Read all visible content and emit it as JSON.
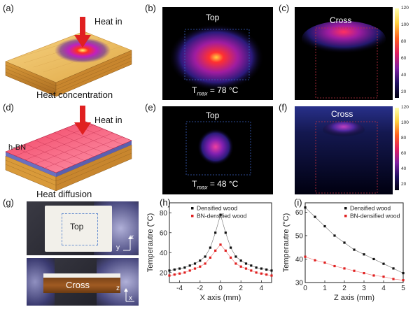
{
  "panels": {
    "a": {
      "label": "(a)",
      "heat_in": "Heat in",
      "caption": "Heat concentration"
    },
    "b": {
      "label": "(b)",
      "view": "Top",
      "tmax_prefix": "T",
      "tmax_sub": "max",
      "tmax_value": "= 78 °C"
    },
    "c": {
      "label": "(c)",
      "view": "Cross"
    },
    "d": {
      "label": "(d)",
      "heat_in": "Heat in",
      "material": "h-BN",
      "caption": "Heat diffusion"
    },
    "e": {
      "label": "(e)",
      "view": "Top",
      "tmax_prefix": "T",
      "tmax_sub": "max",
      "tmax_value": "= 48 °C"
    },
    "f": {
      "label": "(f)",
      "view": "Cross"
    },
    "g": {
      "label": "(g)",
      "top_label": "Top",
      "cross_label": "Cross",
      "axis_x": "x",
      "axis_y": "y",
      "axis_z": "z",
      "axis_x2": "x"
    },
    "h": {
      "label": "(h)"
    },
    "i": {
      "label": "(i)"
    }
  },
  "colorbar": {
    "ticks": [
      "120",
      "100",
      "80",
      "60",
      "40",
      "20"
    ]
  },
  "colors": {
    "densified": "#111111",
    "bn": "#e02020",
    "thermal_bg": "#000000"
  },
  "chart_data": [
    {
      "type": "line",
      "panel": "h",
      "xlabel": "X axis (mm)",
      "ylabel": "Temperautre (°C)",
      "xlim": [
        -5,
        5
      ],
      "ylim": [
        10,
        90
      ],
      "xticks": [
        -4,
        -2,
        0,
        2,
        4
      ],
      "yticks": [
        20,
        40,
        60,
        80
      ],
      "legend_position": "top-center",
      "x": [
        -5,
        -4.5,
        -4,
        -3.5,
        -3,
        -2.5,
        -2,
        -1.5,
        -1,
        -0.5,
        0,
        0.5,
        1,
        1.5,
        2,
        2.5,
        3,
        3.5,
        4,
        4.5,
        5
      ],
      "series": [
        {
          "name": "Densified wood",
          "values": [
            22,
            23,
            24,
            25,
            27,
            29,
            32,
            36,
            45,
            60,
            78,
            60,
            45,
            36,
            32,
            29,
            27,
            25,
            24,
            23,
            22
          ]
        },
        {
          "name": "BN-densified wood",
          "values": [
            17,
            18,
            19,
            20,
            22,
            24,
            26,
            29,
            35,
            42,
            48,
            42,
            35,
            29,
            26,
            24,
            22,
            20,
            19,
            18,
            17
          ]
        }
      ]
    },
    {
      "type": "line",
      "panel": "i",
      "xlabel": "Z axis (mm)",
      "ylabel": "Temperautre (°C)",
      "xlim": [
        0,
        5
      ],
      "ylim": [
        30,
        64
      ],
      "xticks": [
        0,
        1,
        2,
        3,
        4,
        5
      ],
      "yticks": [
        30,
        40,
        50,
        60
      ],
      "legend_position": "top-right",
      "x": [
        0,
        0.5,
        1,
        1.5,
        2,
        2.5,
        3,
        3.5,
        4,
        4.5,
        5
      ],
      "series": [
        {
          "name": "Densified wood",
          "values": [
            62,
            58,
            54,
            50,
            47,
            44,
            42,
            40,
            38,
            36,
            34
          ]
        },
        {
          "name": "BN-densified wood",
          "values": [
            41,
            39.5,
            38.5,
            37,
            36,
            35,
            34,
            33,
            32.5,
            31.5,
            31
          ]
        }
      ]
    }
  ]
}
